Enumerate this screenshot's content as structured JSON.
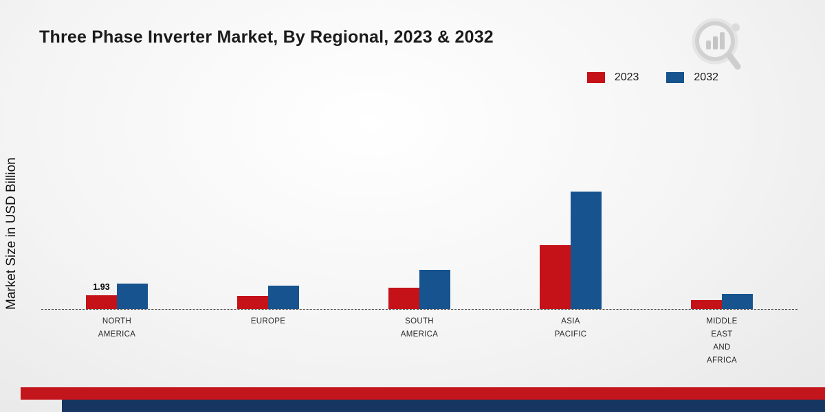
{
  "chart_data": {
    "type": "bar",
    "title": "Three Phase Inverter Market, By Regional, 2023 & 2032",
    "ylabel": "Market Size in USD Billion",
    "xlabel": "",
    "categories": [
      "NORTH AMERICA",
      "EUROPE",
      "SOUTH AMERICA",
      "ASIA PACIFIC",
      "MIDDLE EAST AND AFRICA"
    ],
    "tick_labels": [
      "NORTH\nAMERICA",
      "EUROPE",
      "SOUTH\nAMERICA",
      "ASIA\nPACIFIC",
      "MIDDLE\nEAST\nAND\nAFRICA"
    ],
    "series": [
      {
        "name": "2023",
        "color": "#c41218",
        "values": [
          1.93,
          1.8,
          3.0,
          9.0,
          1.25
        ]
      },
      {
        "name": "2032",
        "color": "#17538e",
        "values": [
          3.6,
          3.3,
          5.5,
          16.5,
          2.1
        ]
      }
    ],
    "annotations": [
      {
        "category_index": 0,
        "series_index": 0,
        "text": "1.93",
        "category": "NORTH AMERICA",
        "series": "2023"
      }
    ],
    "ylim": [
      0,
      17
    ],
    "grid": false,
    "baseline": "dashed",
    "legend_position": "top-right"
  },
  "footer": {
    "stripe_red_color": "#c3161c",
    "stripe_blue_color": "#163561"
  },
  "branding": {
    "logo_icon": "magnifier-bar-chart-watermark"
  }
}
